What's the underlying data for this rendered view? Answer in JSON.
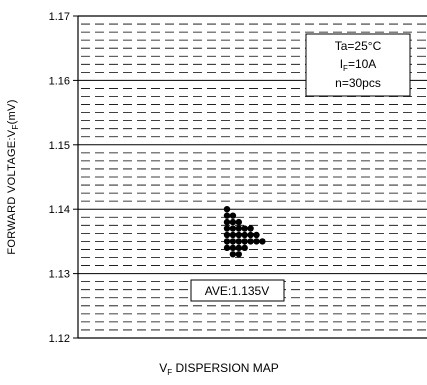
{
  "chart_data": {
    "type": "scatter",
    "title": "",
    "xlabel": "V_F DISPERSION MAP",
    "ylabel": "FORWARD VOLTAGE:V_F(mV)",
    "ylim": [
      1.12,
      1.17
    ],
    "y_ticks": [
      "1.12",
      "1.13",
      "1.14",
      "1.15",
      "1.16",
      "1.17"
    ],
    "grid": true,
    "x_axis_labels_shown": false,
    "conditions": {
      "ta": "Ta=25°C",
      "if_prefix": "I",
      "if_sub": "F",
      "if_suffix": "=10A",
      "n": "n=30pcs"
    },
    "average_label": "AVE:1.135V",
    "points": [
      {
        "x": 0,
        "y": 1.14
      },
      {
        "x": 0,
        "y": 1.139
      },
      {
        "x": 0,
        "y": 1.138
      },
      {
        "x": 0,
        "y": 1.137
      },
      {
        "x": 0,
        "y": 1.136
      },
      {
        "x": 0,
        "y": 1.135
      },
      {
        "x": 0,
        "y": 1.134
      },
      {
        "x": 1,
        "y": 1.139
      },
      {
        "x": 1,
        "y": 1.138
      },
      {
        "x": 1,
        "y": 1.137
      },
      {
        "x": 1,
        "y": 1.136
      },
      {
        "x": 1,
        "y": 1.135
      },
      {
        "x": 1,
        "y": 1.134
      },
      {
        "x": 1,
        "y": 1.133
      },
      {
        "x": 2,
        "y": 1.138
      },
      {
        "x": 2,
        "y": 1.137
      },
      {
        "x": 2,
        "y": 1.136
      },
      {
        "x": 2,
        "y": 1.135
      },
      {
        "x": 2,
        "y": 1.134
      },
      {
        "x": 2,
        "y": 1.133
      },
      {
        "x": 3,
        "y": 1.137
      },
      {
        "x": 3,
        "y": 1.136
      },
      {
        "x": 3,
        "y": 1.135
      },
      {
        "x": 3,
        "y": 1.134
      },
      {
        "x": 4,
        "y": 1.137
      },
      {
        "x": 4,
        "y": 1.136
      },
      {
        "x": 4,
        "y": 1.135
      },
      {
        "x": 5,
        "y": 1.136
      },
      {
        "x": 5,
        "y": 1.135
      },
      {
        "x": 6,
        "y": 1.135
      }
    ],
    "colors": {
      "point": "#000000",
      "grid": "#000000",
      "background": "#ffffff"
    }
  }
}
